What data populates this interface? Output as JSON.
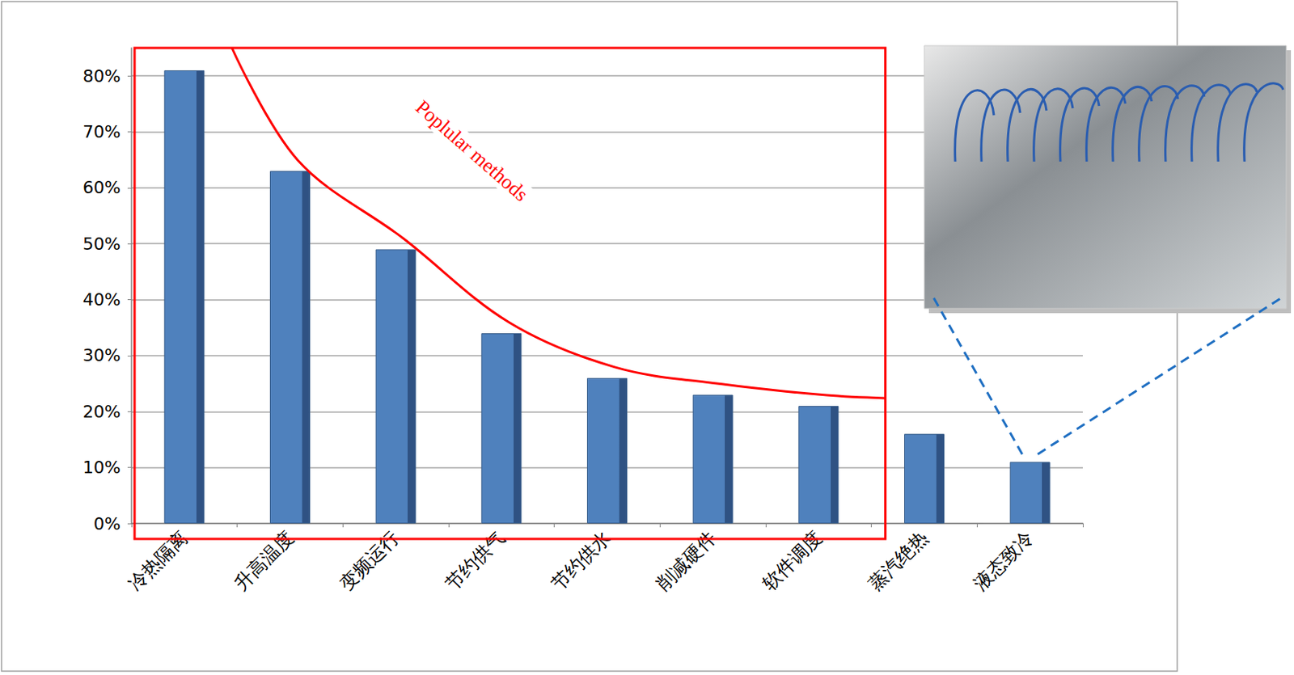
{
  "chart_data": {
    "type": "bar",
    "categories": [
      "冷热隔离",
      "升高温度",
      "变频运行",
      "节约供气",
      "节约供水",
      "削减硬件",
      "软件调度",
      "蒸汽绝热",
      "液态致冷"
    ],
    "values": [
      81,
      63,
      49,
      34,
      26,
      23,
      21,
      16,
      11
    ],
    "color": "#4f81bd",
    "ylim": [
      0,
      85
    ],
    "yticks": [
      {
        "value": 0,
        "label": "0%"
      },
      {
        "value": 10,
        "label": "10%"
      },
      {
        "value": 20,
        "label": "20%"
      },
      {
        "value": 30,
        "label": "30%"
      },
      {
        "value": 40,
        "label": "40%"
      },
      {
        "value": 50,
        "label": "50%"
      },
      {
        "value": 60,
        "label": "60%"
      },
      {
        "value": 70,
        "label": "70%"
      },
      {
        "value": 80,
        "label": "80%"
      }
    ],
    "grid": true,
    "annotation": "Poplular methods"
  }
}
